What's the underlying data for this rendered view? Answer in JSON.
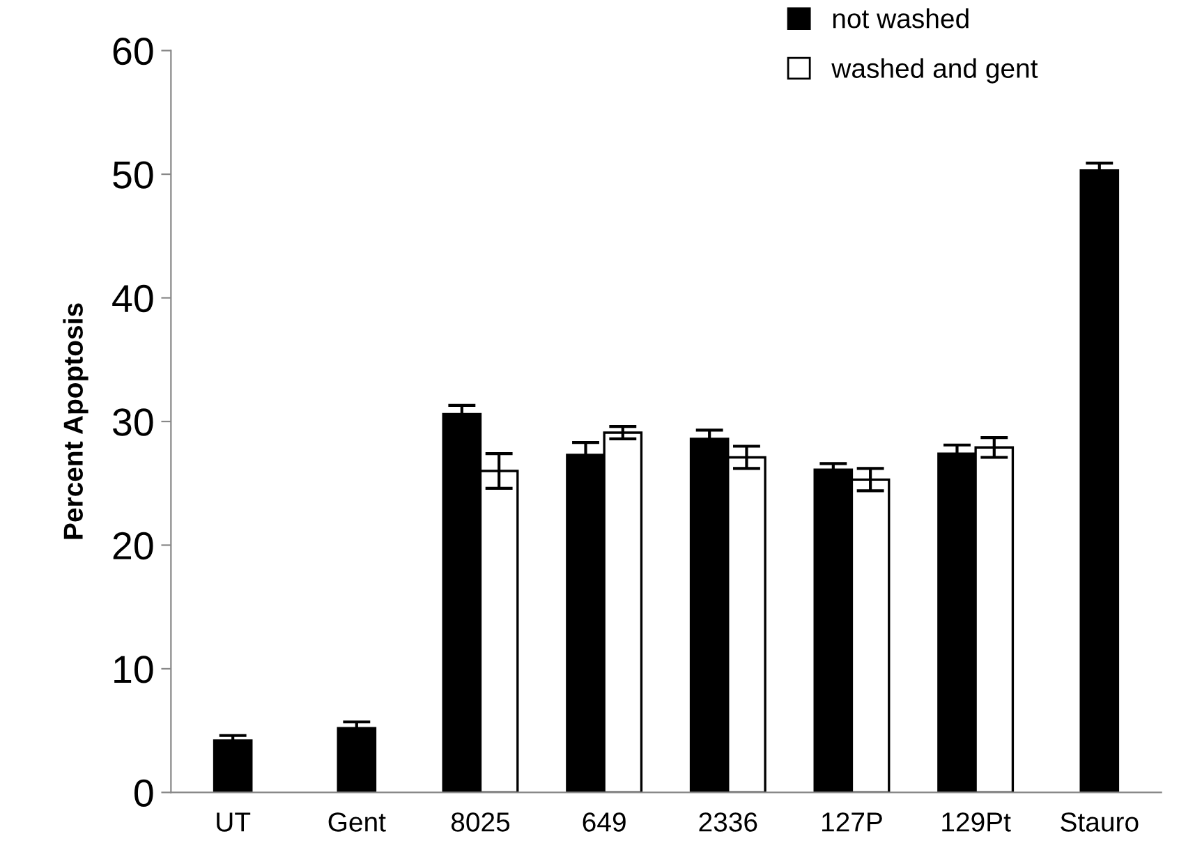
{
  "chart_data": {
    "type": "bar",
    "ylabel": "Percent Apoptosis",
    "categories": [
      "UT",
      "Gent",
      "8025",
      "649",
      "2336",
      "127P",
      "129Pt",
      "Stauro"
    ],
    "series": [
      {
        "name": "not washed",
        "color": "#000000",
        "values": [
          4.2,
          5.2,
          30.6,
          27.3,
          28.6,
          26.1,
          27.4,
          50.3
        ],
        "errors": [
          0.4,
          0.5,
          0.7,
          1.0,
          0.7,
          0.5,
          0.7,
          0.6
        ]
      },
      {
        "name": "washed and gent",
        "color": "#ffffff",
        "values": [
          null,
          null,
          26.0,
          29.1,
          27.1,
          25.3,
          27.9,
          null
        ],
        "errors": [
          null,
          null,
          1.4,
          0.5,
          0.9,
          0.9,
          0.8,
          null
        ]
      }
    ],
    "ylim": [
      0,
      60
    ],
    "yticks": [
      0,
      10,
      20,
      30,
      40,
      50,
      60
    ],
    "grid": false,
    "legend": "top right"
  }
}
